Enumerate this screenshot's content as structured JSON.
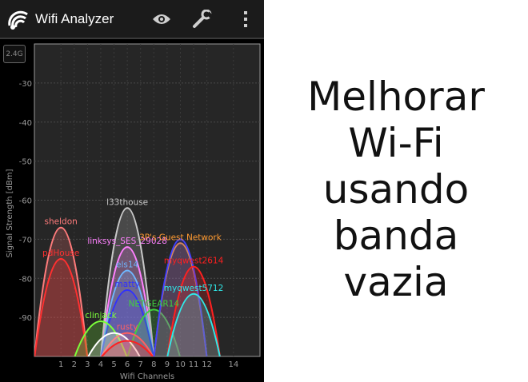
{
  "app": {
    "title": "Wifi Analyzer",
    "band_label": "2.4G",
    "icons": {
      "app": "wifi-signal-icon",
      "view": "eye-icon",
      "tools": "wrench-icon",
      "menu": "overflow-menu-icon"
    }
  },
  "headline": {
    "lines": [
      "Melhorar",
      "Wi-Fi",
      "usando",
      "banda",
      "vazia"
    ]
  },
  "chart_data": {
    "type": "area",
    "xlabel": "Wifi Channels",
    "ylabel": "Signal Strength [dBm]",
    "x_ticks": [
      1,
      2,
      3,
      4,
      5,
      6,
      7,
      8,
      9,
      10,
      11,
      12,
      14
    ],
    "y_ticks": [
      -30,
      -40,
      -50,
      -60,
      -70,
      -80,
      -90
    ],
    "xlim": [
      -1,
      16
    ],
    "ylim": [
      -100,
      -20
    ],
    "grid": true,
    "series": [
      {
        "name": "sheldon",
        "channel": 1,
        "level": -67,
        "color": "#ff7b7b"
      },
      {
        "name": "pdHouse",
        "channel": 1,
        "level": -75,
        "color": "#ff3030"
      },
      {
        "name": "l33thouse",
        "channel": 6,
        "level": -62,
        "color": "#c8c8c8"
      },
      {
        "name": "linksys_SES_29028",
        "channel": 6,
        "level": -72,
        "color": "#ff80ff"
      },
      {
        "name": "els14",
        "channel": 6,
        "level": -78,
        "color": "#6fb7ff"
      },
      {
        "name": "matty",
        "channel": 6,
        "level": -83,
        "color": "#3030ff"
      },
      {
        "name": "NETGEAR14",
        "channel": 8,
        "level": -88,
        "color": "#40d040"
      },
      {
        "name": "clinjack",
        "channel": 4,
        "level": -91,
        "color": "#7cff3a"
      },
      {
        "name": "rusty",
        "channel": 6,
        "level": -94,
        "color": "#ff6060"
      },
      {
        "name": "",
        "channel": 5,
        "level": -94,
        "color": "#ffffff"
      },
      {
        "name": "",
        "channel": 6,
        "level": -96,
        "color": "#ff2020"
      },
      {
        "name": "3P's Guest Network",
        "channel": 10,
        "level": -71,
        "color": "#ff9a30"
      },
      {
        "name": "",
        "channel": 10,
        "level": -70,
        "color": "#4040ff"
      },
      {
        "name": "myqwest2614",
        "channel": 11,
        "level": -77,
        "color": "#ff2020"
      },
      {
        "name": "myqwest5712",
        "channel": 11,
        "level": -84,
        "color": "#30e8e8"
      }
    ]
  }
}
